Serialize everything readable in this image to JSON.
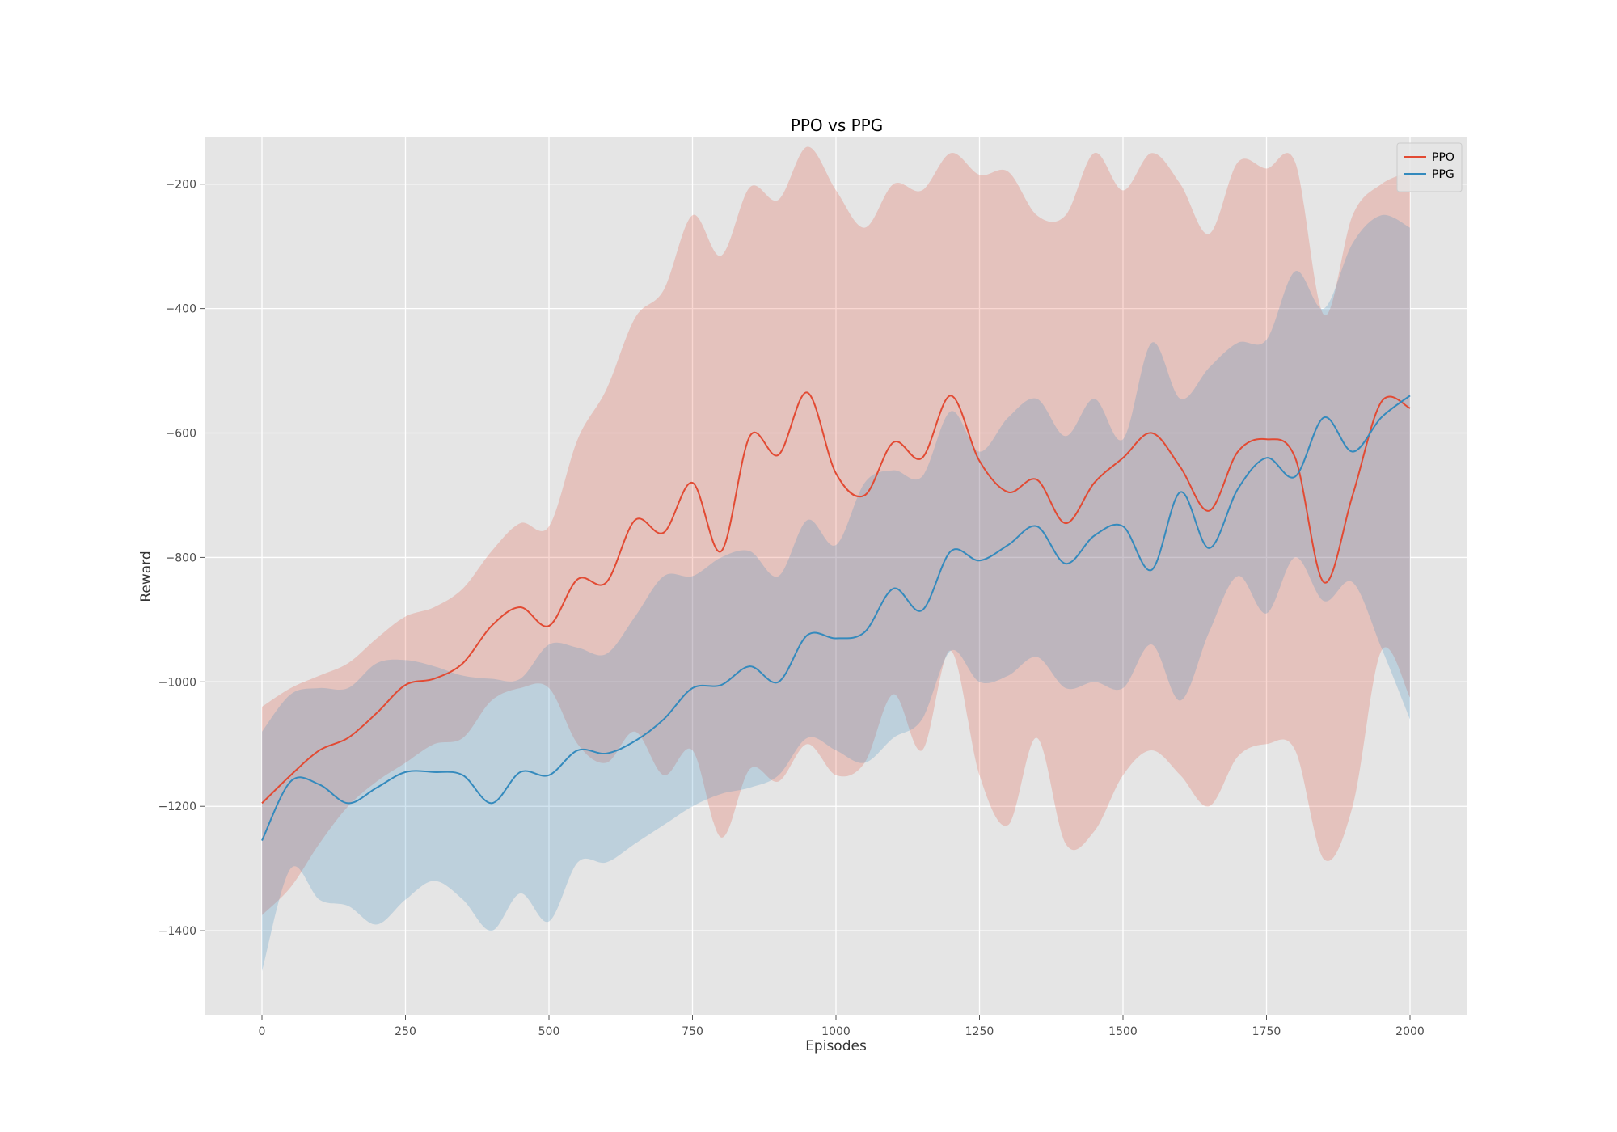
{
  "chart_data": {
    "type": "line",
    "title": "PPO vs PPG",
    "xlabel": "Episodes",
    "ylabel": "Reward",
    "xlim": [
      -100,
      2100
    ],
    "ylim": [
      -1535,
      -125
    ],
    "x_ticks": [
      0,
      250,
      500,
      750,
      1000,
      1250,
      1500,
      1750,
      2000
    ],
    "x_tick_labels": [
      "0",
      "250",
      "500",
      "750",
      "1000",
      "1250",
      "1500",
      "1750",
      "2000"
    ],
    "y_ticks": [
      -1400,
      -1200,
      -1000,
      -800,
      -600,
      -400,
      -200
    ],
    "y_tick_labels": [
      "−1400",
      "−1200",
      "−1000",
      "−800",
      "−600",
      "−400",
      "−200"
    ],
    "grid": true,
    "legend_position": "top-right",
    "x": [
      0,
      50,
      100,
      150,
      200,
      250,
      300,
      350,
      400,
      450,
      500,
      550,
      600,
      650,
      700,
      750,
      800,
      850,
      900,
      950,
      1000,
      1050,
      1100,
      1150,
      1200,
      1250,
      1300,
      1350,
      1400,
      1450,
      1500,
      1550,
      1600,
      1650,
      1700,
      1750,
      1800,
      1850,
      1900,
      1950,
      2000
    ],
    "series": [
      {
        "name": "PPO",
        "color": "#e24a33",
        "mean": [
          -1195,
          -1150,
          -1110,
          -1090,
          -1050,
          -1005,
          -995,
          -970,
          -910,
          -880,
          -910,
          -835,
          -840,
          -740,
          -760,
          -680,
          -790,
          -605,
          -635,
          -535,
          -665,
          -700,
          -615,
          -640,
          -540,
          -645,
          -695,
          -675,
          -745,
          -680,
          -640,
          -600,
          -655,
          -725,
          -630,
          -610,
          -640,
          -840,
          -700,
          -550,
          -560
        ],
        "upper": [
          -1040,
          -1010,
          -990,
          -970,
          -930,
          -895,
          -880,
          -850,
          -790,
          -745,
          -750,
          -610,
          -530,
          -415,
          -370,
          -250,
          -315,
          -205,
          -225,
          -140,
          -210,
          -270,
          -200,
          -210,
          -150,
          -185,
          -180,
          -250,
          -250,
          -150,
          -210,
          -150,
          -200,
          -280,
          -165,
          -175,
          -165,
          -410,
          -250,
          -200,
          -180
        ],
        "lower": [
          -1375,
          -1330,
          -1260,
          -1200,
          -1160,
          -1130,
          -1100,
          -1090,
          -1030,
          -1010,
          -1010,
          -1100,
          -1130,
          -1080,
          -1150,
          -1110,
          -1250,
          -1140,
          -1160,
          -1100,
          -1150,
          -1130,
          -1020,
          -1110,
          -950,
          -1150,
          -1230,
          -1090,
          -1260,
          -1240,
          -1150,
          -1110,
          -1150,
          -1200,
          -1120,
          -1100,
          -1110,
          -1285,
          -1200,
          -950,
          -1025
        ]
      },
      {
        "name": "PPG",
        "color": "#348abd",
        "mean": [
          -1255,
          -1160,
          -1165,
          -1195,
          -1170,
          -1145,
          -1145,
          -1150,
          -1195,
          -1145,
          -1150,
          -1110,
          -1115,
          -1095,
          -1060,
          -1010,
          -1005,
          -975,
          -1000,
          -925,
          -930,
          -920,
          -850,
          -885,
          -790,
          -805,
          -780,
          -750,
          -810,
          -765,
          -750,
          -820,
          -695,
          -785,
          -690,
          -640,
          -670,
          -575,
          -630,
          -575,
          -540
        ],
        "upper": [
          -1080,
          -1020,
          -1010,
          -1010,
          -970,
          -965,
          -975,
          -990,
          -995,
          -995,
          -940,
          -945,
          -955,
          -895,
          -830,
          -830,
          -800,
          -790,
          -830,
          -740,
          -780,
          -680,
          -660,
          -670,
          -565,
          -630,
          -575,
          -545,
          -605,
          -545,
          -610,
          -455,
          -545,
          -495,
          -455,
          -450,
          -340,
          -400,
          -295,
          -250,
          -270
        ],
        "lower": [
          -1465,
          -1300,
          -1350,
          -1360,
          -1390,
          -1350,
          -1320,
          -1350,
          -1400,
          -1340,
          -1385,
          -1290,
          -1290,
          -1260,
          -1230,
          -1200,
          -1180,
          -1170,
          -1150,
          -1090,
          -1110,
          -1130,
          -1090,
          -1060,
          -950,
          -1000,
          -990,
          -960,
          -1010,
          -1000,
          -1010,
          -940,
          -1030,
          -920,
          -830,
          -890,
          -800,
          -870,
          -840,
          -945,
          -1060
        ]
      }
    ]
  }
}
